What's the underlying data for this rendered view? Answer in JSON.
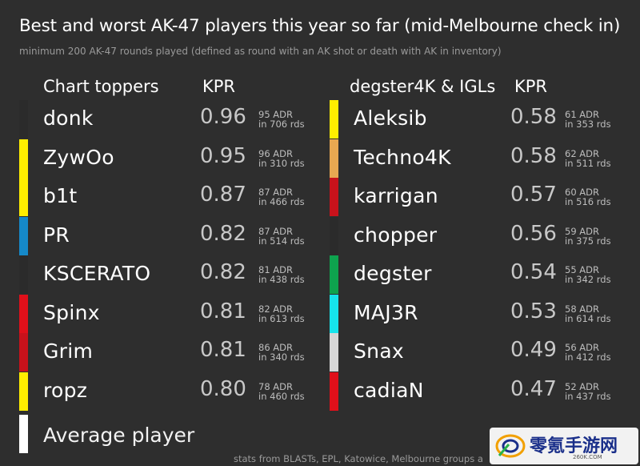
{
  "title": "Best and worst AK-47 players this year so far (mid-Melbourne check in)",
  "subtitle": "minimum 200 AK-47 rounds played (defined as round with an AK shot or death with AK in inventory)",
  "footer": "stats from BLASTs, EPL, Katowice, Melbourne groups a",
  "watermark": {
    "text": "零氪手游网",
    "url": "260K.COM"
  },
  "average_label": "Average player",
  "chart_data": {
    "type": "table",
    "panels": [
      {
        "heading": "Chart toppers",
        "value_heading": "KPR",
        "rows": [
          {
            "player": "donk",
            "kpr": "0.96",
            "adr": "95 ADR",
            "rounds": "in 706 rds",
            "color": "#2b2b2b"
          },
          {
            "player": "ZywOo",
            "kpr": "0.95",
            "adr": "96 ADR",
            "rounds": "in 310 rds",
            "color": "#ffee00"
          },
          {
            "player": "b1t",
            "kpr": "0.87",
            "adr": "87 ADR",
            "rounds": "in 466 rds",
            "color": "#ffee00"
          },
          {
            "player": "PR",
            "kpr": "0.82",
            "adr": "87 ADR",
            "rounds": "in 514 rds",
            "color": "#1589c9"
          },
          {
            "player": "KSCERATO",
            "kpr": "0.82",
            "adr": "81 ADR",
            "rounds": "in 438 rds",
            "color": "#2b2b2b"
          },
          {
            "player": "Spinx",
            "kpr": "0.81",
            "adr": "82 ADR",
            "rounds": "in 613 rds",
            "color": "#e0101a"
          },
          {
            "player": "Grim",
            "kpr": "0.81",
            "adr": "86 ADR",
            "rounds": "in 340 rds",
            "color": "#c8121b"
          },
          {
            "player": "ropz",
            "kpr": "0.80",
            "adr": "78 ADR",
            "rounds": "in 460 rds",
            "color": "#ffee00"
          }
        ]
      },
      {
        "heading": "degster4K & IGLs",
        "value_heading": "KPR",
        "rows": [
          {
            "player": "Aleksib",
            "kpr": "0.58",
            "adr": "61 ADR",
            "rounds": "in 353 rds",
            "color": "#ffee00"
          },
          {
            "player": "Techno4K",
            "kpr": "0.58",
            "adr": "62 ADR",
            "rounds": "in 511 rds",
            "color": "#e8a851"
          },
          {
            "player": "karrigan",
            "kpr": "0.57",
            "adr": "60 ADR",
            "rounds": "in 516 rds",
            "color": "#c8121b"
          },
          {
            "player": "chopper",
            "kpr": "0.56",
            "adr": "59 ADR",
            "rounds": "in 375 rds",
            "color": "#2b2b2b"
          },
          {
            "player": "degster",
            "kpr": "0.54",
            "adr": "55 ADR",
            "rounds": "in 342 rds",
            "color": "#0ea34e"
          },
          {
            "player": "MAJ3R",
            "kpr": "0.53",
            "adr": "58 ADR",
            "rounds": "in 614 rds",
            "color": "#16e4ec"
          },
          {
            "player": "Snax",
            "kpr": "0.49",
            "adr": "56 ADR",
            "rounds": "in 412 rds",
            "color": "#d6d6d6"
          },
          {
            "player": "cadiaN",
            "kpr": "0.47",
            "adr": "52 ADR",
            "rounds": "in 437 rds",
            "color": "#e0101a"
          }
        ]
      }
    ]
  }
}
